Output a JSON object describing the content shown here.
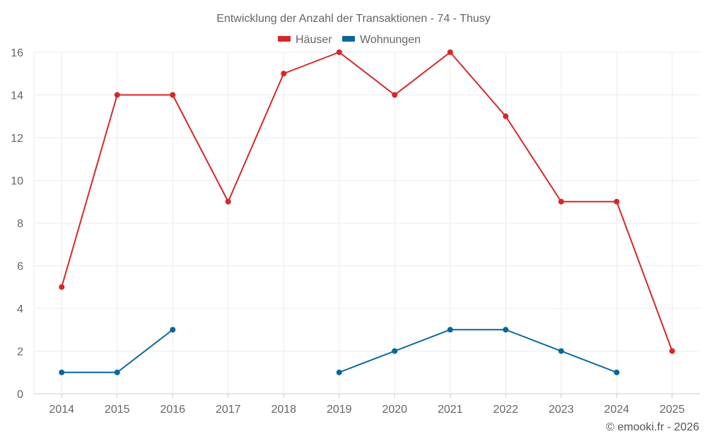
{
  "chart_data": {
    "type": "line",
    "title": "Entwicklung der Anzahl der Transaktionen - 74 - Thusy",
    "categories": [
      "2014",
      "2015",
      "2016",
      "2017",
      "2018",
      "2019",
      "2020",
      "2021",
      "2022",
      "2023",
      "2024",
      "2025"
    ],
    "ylim": [
      0,
      16
    ],
    "yticks": [
      0,
      2,
      4,
      6,
      8,
      10,
      12,
      14,
      16
    ],
    "grid": true,
    "legend_position": "top-center",
    "series": [
      {
        "name": "Häuser",
        "color": "#d62728",
        "values": [
          5,
          14,
          14,
          9,
          15,
          16,
          14,
          16,
          13,
          9,
          9,
          2
        ]
      },
      {
        "name": "Wohnungen",
        "color": "#08679c",
        "values": [
          1,
          1,
          3,
          null,
          null,
          1,
          2,
          3,
          3,
          2,
          1,
          null
        ]
      }
    ],
    "xlabel": "",
    "ylabel": ""
  },
  "credit": "© emooki.fr - 2026"
}
